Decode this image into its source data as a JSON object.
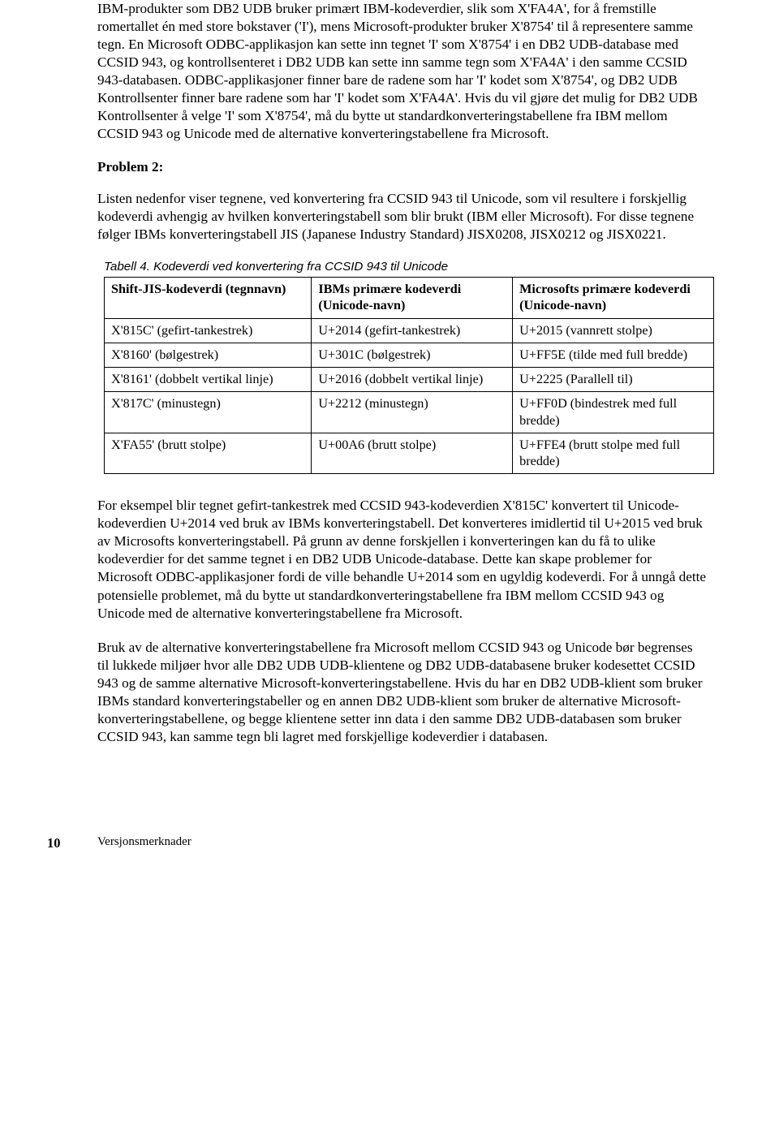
{
  "para1": "IBM-produkter som DB2 UDB bruker primært IBM-kodeverdier, slik som X'FA4A', for å fremstille romertallet én med store bokstaver ('I'), mens Microsoft-produkter bruker X'8754' til å representere samme tegn. En Microsoft ODBC-applikasjon kan sette inn tegnet 'I' som X'8754' i en DB2 UDB-database med CCSID 943, og kontrollsenteret i DB2 UDB kan sette inn samme tegn som X'FA4A' i den samme CCSID 943-databasen. ODBC-applikasjoner finner bare de radene som har 'I' kodet som X'8754', og DB2 UDB Kontrollsenter finner bare radene som har 'I' kodet som X'FA4A'. Hvis du vil gjøre det mulig for DB2 UDB Kontrollsenter å velge 'I' som X'8754', må du bytte ut standardkonverteringstabellene fra IBM mellom CCSID 943 og Unicode med de alternative konverteringstabellene fra Microsoft.",
  "problem_label": "Problem 2:",
  "para2": "Listen nedenfor viser tegnene, ved konvertering fra CCSID 943 til Unicode, som vil resultere i forskjellig kodeverdi avhengig av hvilken konverteringstabell som blir brukt (IBM eller Microsoft). For disse tegnene følger IBMs konverteringstabell JIS (Japanese Industry Standard) JISX0208, JISX0212 og JISX0221.",
  "table_caption": "Tabell 4. Kodeverdi ved konvertering fra CCSID 943 til Unicode",
  "table": {
    "headers": [
      "Shift-JIS-kodeverdi (tegnnavn)",
      "IBMs primære kodeverdi (Unicode-navn)",
      "Microsofts primære kodeverdi (Unicode-navn)"
    ],
    "rows": [
      [
        "X'815C' (gefirt-tankestrek)",
        "U+2014 (gefirt-tankestrek)",
        "U+2015 (vannrett stolpe)"
      ],
      [
        "X'8160' (bølgestrek)",
        "U+301C (bølgestrek)",
        "U+FF5E (tilde med full bredde)"
      ],
      [
        "X'8161' (dobbelt vertikal linje)",
        "U+2016 (dobbelt vertikal linje)",
        "U+2225 (Parallell til)"
      ],
      [
        "X'817C' (minustegn)",
        "U+2212 (minustegn)",
        "U+FF0D (bindestrek med full bredde)"
      ],
      [
        "X'FA55' (brutt stolpe)",
        "U+00A6 (brutt stolpe)",
        "U+FFE4 (brutt stolpe med full bredde)"
      ]
    ],
    "col_widths": [
      "34%",
      "33%",
      "33%"
    ]
  },
  "para3": "For eksempel blir tegnet gefirt-tankestrek med CCSID 943-kodeverdien X'815C' konvertert til Unicode-kodeverdien U+2014 ved bruk av IBMs konverteringstabell. Det konverteres imidlertid til U+2015 ved bruk av Microsofts konverteringstabell. På grunn av denne forskjellen i konverteringen kan du få to ulike kodeverdier for det samme tegnet i en DB2 UDB Unicode-database. Dette kan skape problemer for Microsoft ODBC-applikasjoner fordi de ville behandle U+2014 som en ugyldig kodeverdi. For å unngå dette potensielle problemet, må du bytte ut standardkonverteringstabellene fra IBM mellom CCSID 943 og Unicode med de alternative konverteringstabellene fra Microsoft.",
  "para4": "Bruk av de alternative konverteringstabellene fra Microsoft mellom CCSID 943 og Unicode bør begrenses til lukkede miljøer hvor alle DB2 UDB UDB-klientene og DB2 UDB-databasene bruker kodesettet CCSID 943 og de samme alternative Microsoft-konverteringstabellene. Hvis du har en DB2 UDB-klient som bruker IBMs standard konverteringstabeller og en annen DB2 UDB-klient som bruker de alternative Microsoft-konverteringstabellene, og begge klientene setter inn data i den samme DB2 UDB-databasen som bruker CCSID 943, kan samme tegn bli lagret med forskjellige kodeverdier i databasen.",
  "footer": {
    "page_number": "10",
    "text": "Versjonsmerknader"
  }
}
